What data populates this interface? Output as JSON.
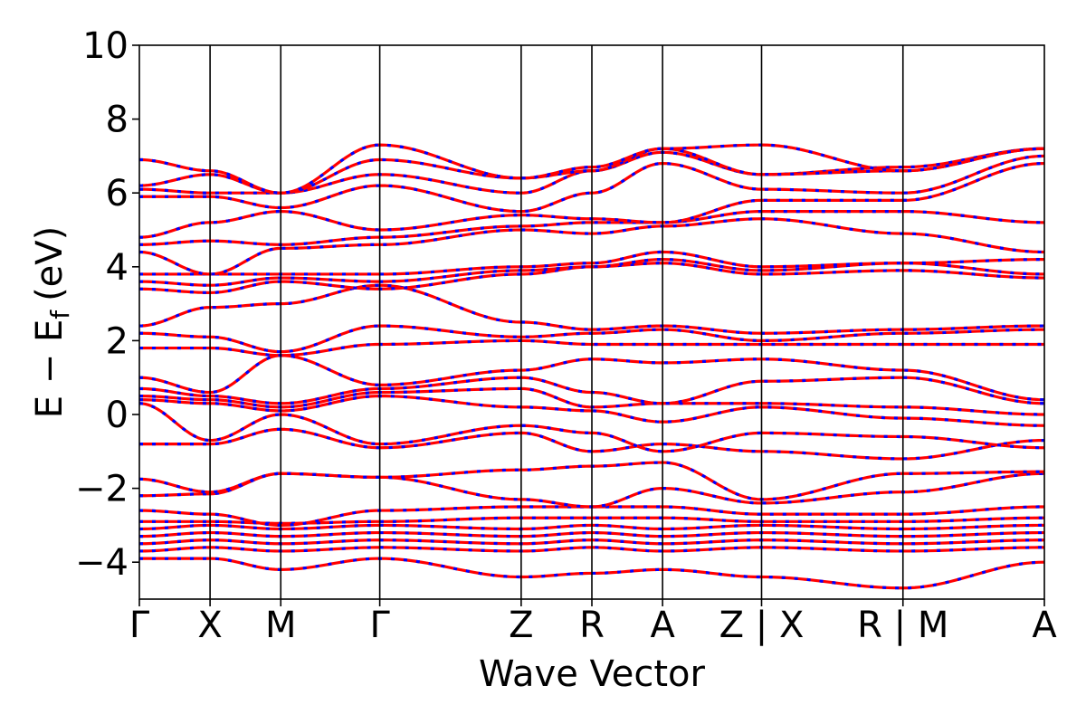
{
  "chart_data": {
    "type": "line",
    "title": "",
    "xlabel": "Wave Vector",
    "ylabel_main": "E − E",
    "ylabel_sub": "f",
    "ylabel_unit": "(eV)",
    "ylim": [
      -5,
      10
    ],
    "yticks": [
      -4,
      -2,
      0,
      2,
      4,
      6,
      8,
      10
    ],
    "ytick_labels": [
      "−4",
      "−2",
      "0",
      "2",
      "4",
      "6",
      "8",
      "10"
    ],
    "k_path": {
      "positions": [
        0,
        1,
        2,
        3.4,
        5.4,
        6.4,
        7.4,
        8.8,
        10.8,
        12.8
      ],
      "labels": [
        "Γ",
        "X",
        "M",
        "Γ",
        "Z",
        "R",
        "A",
        "Z | X",
        "R | M",
        "A"
      ],
      "discontinuities": [
        8.8,
        10.8
      ]
    },
    "series_styles": {
      "spin_up_color": "#ff0000",
      "spin_down_color": "#0000ff"
    },
    "bands": [
      {
        "name": "",
        "values": [
          -3.9,
          -3.9,
          -4.2,
          -3.9,
          -4.4,
          -4.3,
          -4.2,
          -4.4,
          -4.7,
          -4.0
        ]
      },
      {
        "name": "",
        "values": [
          -3.7,
          -3.6,
          -3.7,
          -3.6,
          -3.7,
          -3.6,
          -3.7,
          -3.6,
          -3.7,
          -3.6
        ]
      },
      {
        "name": "",
        "values": [
          -3.5,
          -3.4,
          -3.5,
          -3.4,
          -3.5,
          -3.4,
          -3.5,
          -3.4,
          -3.5,
          -3.4
        ]
      },
      {
        "name": "",
        "values": [
          -3.3,
          -3.2,
          -3.3,
          -3.2,
          -3.3,
          -3.2,
          -3.3,
          -3.2,
          -3.3,
          -3.2
        ]
      },
      {
        "name": "",
        "values": [
          -3.1,
          -3.0,
          -3.1,
          -3.0,
          -3.1,
          -3.0,
          -3.1,
          -3.0,
          -3.1,
          -3.0
        ]
      },
      {
        "name": "",
        "values": [
          -2.9,
          -2.9,
          -2.95,
          -2.9,
          -2.8,
          -2.8,
          -2.8,
          -2.9,
          -2.9,
          -2.8
        ]
      },
      {
        "name": "",
        "values": [
          -2.6,
          -2.7,
          -3.0,
          -2.6,
          -2.5,
          -2.5,
          -2.5,
          -2.7,
          -2.7,
          -2.5
        ]
      },
      {
        "name": "",
        "values": [
          -2.2,
          -2.15,
          -1.6,
          -1.7,
          -2.3,
          -2.5,
          -2.0,
          -2.4,
          -2.1,
          -1.6
        ]
      },
      {
        "name": "",
        "values": [
          -1.75,
          -2.1,
          -1.6,
          -1.7,
          -1.5,
          -1.4,
          -1.3,
          -2.3,
          -1.6,
          -1.55
        ]
      },
      {
        "name": "",
        "values": [
          -0.8,
          -0.8,
          -0.4,
          -0.9,
          -0.5,
          -1.0,
          -0.8,
          -1.0,
          -1.2,
          -0.7
        ]
      },
      {
        "name": "",
        "values": [
          0.3,
          -0.7,
          0.0,
          -0.8,
          -0.3,
          -0.5,
          -1.0,
          -0.5,
          -0.6,
          -0.9
        ]
      },
      {
        "name": "",
        "values": [
          0.4,
          0.3,
          0.1,
          0.5,
          0.2,
          0.1,
          -0.2,
          0.2,
          -0.1,
          -0.3
        ]
      },
      {
        "name": "",
        "values": [
          0.5,
          0.4,
          0.2,
          0.6,
          0.7,
          0.2,
          0.3,
          0.3,
          0.2,
          0.0
        ]
      },
      {
        "name": "",
        "values": [
          0.7,
          0.5,
          0.3,
          0.7,
          1.0,
          0.6,
          0.3,
          0.9,
          1.0,
          0.3
        ]
      },
      {
        "name": "",
        "values": [
          1.0,
          0.6,
          1.6,
          0.8,
          1.2,
          1.5,
          1.4,
          1.5,
          1.2,
          0.4
        ]
      },
      {
        "name": "",
        "values": [
          1.8,
          1.8,
          1.6,
          1.9,
          2.0,
          1.9,
          1.9,
          1.9,
          1.9,
          1.9
        ]
      },
      {
        "name": "",
        "values": [
          2.2,
          2.1,
          1.7,
          2.4,
          2.1,
          2.2,
          2.3,
          2.0,
          2.2,
          2.3
        ]
      },
      {
        "name": "",
        "values": [
          2.4,
          2.9,
          3.0,
          3.5,
          2.5,
          2.3,
          2.4,
          2.2,
          2.3,
          2.4
        ]
      },
      {
        "name": "",
        "values": [
          3.4,
          3.3,
          3.6,
          3.4,
          3.8,
          4.0,
          4.1,
          3.8,
          3.9,
          3.7
        ]
      },
      {
        "name": "",
        "values": [
          3.6,
          3.5,
          3.7,
          3.6,
          3.9,
          4.0,
          4.2,
          3.9,
          4.1,
          3.8
        ]
      },
      {
        "name": "",
        "values": [
          3.8,
          3.8,
          3.8,
          3.8,
          4.0,
          4.1,
          4.4,
          4.0,
          4.1,
          4.2
        ]
      },
      {
        "name": "",
        "values": [
          4.4,
          3.8,
          4.5,
          4.6,
          5.0,
          4.9,
          5.1,
          5.3,
          4.9,
          4.4
        ]
      },
      {
        "name": "",
        "values": [
          4.6,
          4.7,
          4.6,
          4.8,
          5.1,
          5.2,
          5.2,
          5.5,
          5.5,
          5.2
        ]
      },
      {
        "name": "",
        "values": [
          4.8,
          5.2,
          5.5,
          5.0,
          5.4,
          5.3,
          5.2,
          5.8,
          5.8,
          6.8
        ]
      },
      {
        "name": "",
        "values": [
          5.9,
          5.9,
          5.6,
          6.2,
          5.5,
          6.0,
          6.8,
          6.1,
          6.0,
          7.0
        ]
      },
      {
        "name": "",
        "values": [
          6.1,
          6.0,
          6.0,
          6.5,
          6.0,
          6.6,
          7.1,
          6.5,
          6.7,
          7.2
        ]
      },
      {
        "name": "",
        "values": [
          6.2,
          6.5,
          6.0,
          6.9,
          6.4,
          6.6,
          7.2,
          6.5,
          6.6,
          7.2
        ]
      },
      {
        "name": "",
        "values": [
          6.9,
          6.6,
          6.0,
          7.3,
          6.4,
          6.7,
          7.2,
          7.3,
          6.6,
          7.2
        ]
      }
    ]
  }
}
